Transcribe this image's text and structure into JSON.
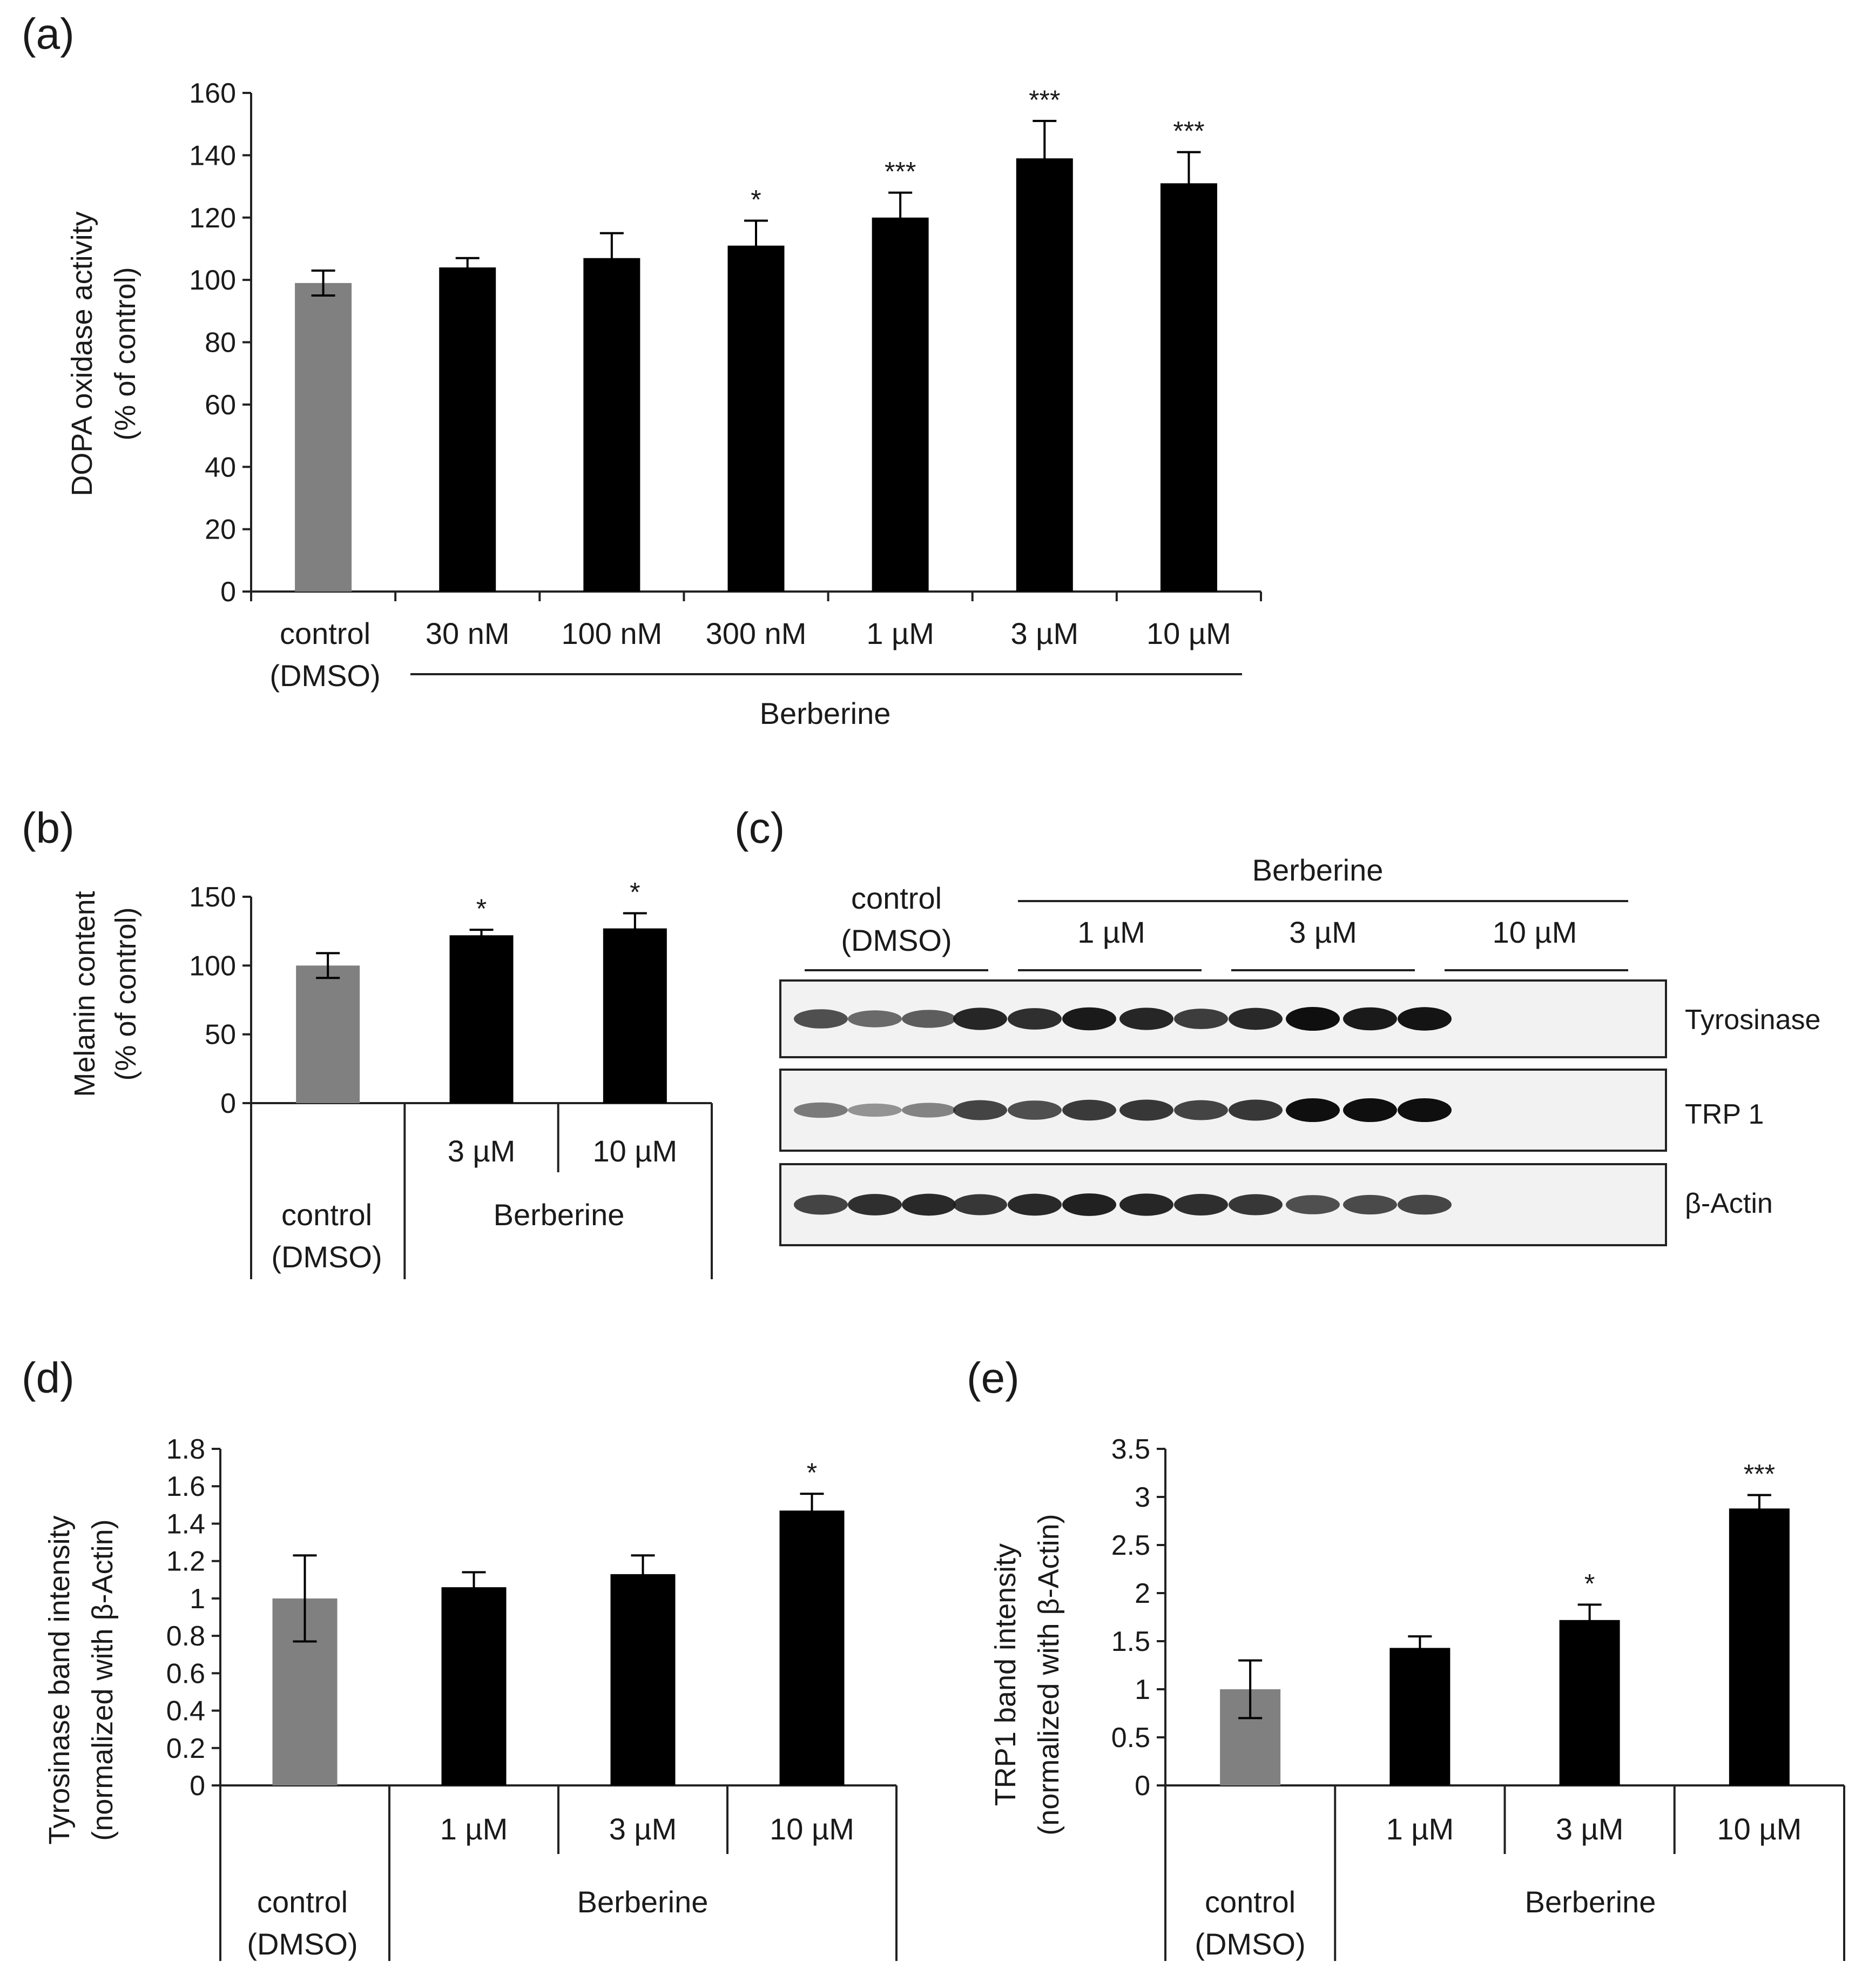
{
  "panels": {
    "a": {
      "label": "(a)"
    },
    "b": {
      "label": "(b)"
    },
    "c": {
      "label": "(c)"
    },
    "d": {
      "label": "(d)"
    },
    "e": {
      "label": "(e)"
    }
  },
  "chart_data": [
    {
      "id": "a",
      "type": "bar",
      "ylabel": [
        "DOPA oxidase activity",
        "(% of control)"
      ],
      "ylim": [
        0,
        160
      ],
      "yticks": [
        0,
        20,
        40,
        60,
        80,
        100,
        120,
        140,
        160
      ],
      "categories": [
        "control\n(DMSO)",
        "30 nM",
        "100 nM",
        "300 nM",
        "1 µM",
        "3 µM",
        "10 µM"
      ],
      "values": [
        99,
        104,
        107,
        111,
        120,
        139,
        131
      ],
      "errors": [
        4,
        3,
        8,
        8,
        8,
        12,
        10
      ],
      "significance": [
        "",
        "",
        "",
        "*",
        "***",
        "***",
        "***"
      ],
      "colors": [
        "#808080",
        "#000000",
        "#000000",
        "#000000",
        "#000000",
        "#000000",
        "#000000"
      ],
      "group_label": "Berberine",
      "control_label": [
        "control",
        "(DMSO)"
      ]
    },
    {
      "id": "b",
      "type": "bar",
      "ylabel": [
        "Melanin content",
        "(% of control)"
      ],
      "ylim": [
        0,
        150
      ],
      "yticks": [
        0,
        50,
        100,
        150
      ],
      "categories": [
        "control (DMSO)",
        "3 µM",
        "10 µM"
      ],
      "values": [
        100,
        122,
        127
      ],
      "errors": [
        9,
        4,
        11
      ],
      "significance": [
        "",
        "*",
        "*"
      ],
      "colors": [
        "#808080",
        "#000000",
        "#000000"
      ],
      "dose_labels": [
        "3 µM",
        "10 µM"
      ],
      "group_label": "Berberine",
      "control_label": [
        "control",
        "(DMSO)"
      ]
    },
    {
      "id": "d",
      "type": "bar",
      "ylabel": [
        "Tyrosinase band intensity",
        "(normalized with β-Actin)"
      ],
      "ylim": [
        0,
        1.8
      ],
      "yticks": [
        0,
        0.2,
        0.4,
        0.6,
        0.8,
        1,
        1.2,
        1.4,
        1.6,
        1.8
      ],
      "ytick_labels": [
        "0",
        "0.2",
        "0.4",
        "0.6",
        "0.8",
        "1",
        "1.2",
        "1.4",
        "1.6",
        "1.8"
      ],
      "categories": [
        "control (DMSO)",
        "1 µM",
        "3 µM",
        "10 µM"
      ],
      "values": [
        1.0,
        1.06,
        1.13,
        1.47
      ],
      "errors": [
        0.23,
        0.08,
        0.1,
        0.09
      ],
      "significance": [
        "",
        "",
        "",
        "*"
      ],
      "colors": [
        "#808080",
        "#000000",
        "#000000",
        "#000000"
      ],
      "dose_labels": [
        "1 µM",
        "3 µM",
        "10 µM"
      ],
      "group_label": "Berberine",
      "control_label": [
        "control",
        "(DMSO)"
      ]
    },
    {
      "id": "e",
      "type": "bar",
      "ylabel": [
        "TRP1 band intensity",
        "(normalized with β-Actin)"
      ],
      "ylim": [
        0,
        3.5
      ],
      "yticks": [
        0,
        0.5,
        1,
        1.5,
        2,
        2.5,
        3,
        3.5
      ],
      "ytick_labels": [
        "0",
        "0.5",
        "1",
        "1.5",
        "2",
        "2.5",
        "3",
        "3.5"
      ],
      "categories": [
        "control (DMSO)",
        "1 µM",
        "3 µM",
        "10 µM"
      ],
      "values": [
        1.0,
        1.43,
        1.72,
        2.88
      ],
      "errors": [
        0.3,
        0.12,
        0.16,
        0.14
      ],
      "significance": [
        "",
        "",
        "*",
        "***"
      ],
      "colors": [
        "#808080",
        "#000000",
        "#000000",
        "#000000"
      ],
      "dose_labels": [
        "1 µM",
        "3 µM",
        "10 µM"
      ],
      "group_label": "Berberine",
      "control_label": [
        "control",
        "(DMSO)"
      ]
    }
  ],
  "western_blot": {
    "group_label": "Berberine",
    "control_label": [
      "control",
      "(DMSO)"
    ],
    "dose_labels": [
      "1 µM",
      "3 µM",
      "10 µM"
    ],
    "rows": [
      {
        "label": "Tyrosinase",
        "intensities": [
          0.7,
          0.55,
          0.62,
          0.9,
          0.85,
          0.95,
          0.9,
          0.78,
          0.88,
          1.0,
          0.95,
          0.98
        ]
      },
      {
        "label": "TRP 1",
        "intensities": [
          0.45,
          0.3,
          0.4,
          0.75,
          0.7,
          0.8,
          0.82,
          0.75,
          0.82,
          1.0,
          1.0,
          1.0
        ]
      },
      {
        "label": "β-Actin",
        "intensities": [
          0.75,
          0.85,
          0.88,
          0.82,
          0.88,
          0.92,
          0.9,
          0.86,
          0.82,
          0.7,
          0.72,
          0.74
        ]
      }
    ]
  }
}
